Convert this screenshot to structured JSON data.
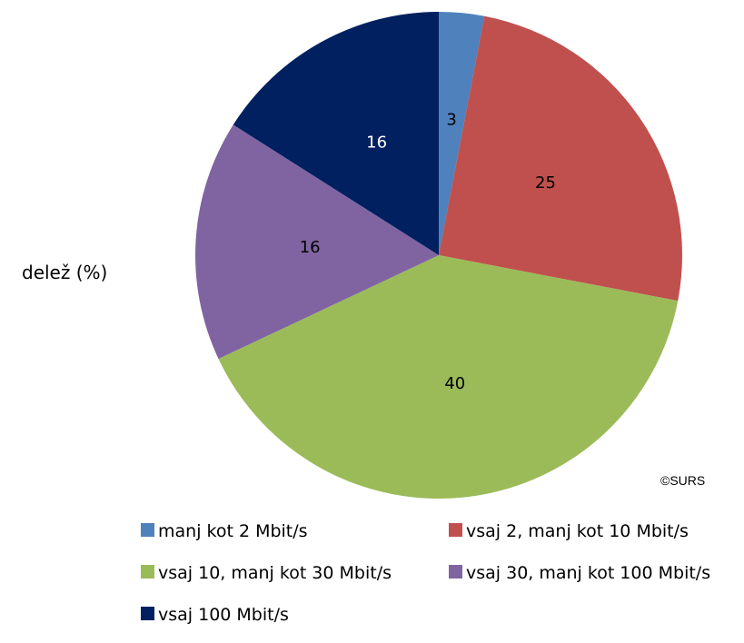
{
  "chart_data": {
    "type": "pie",
    "title": "",
    "ylabel": "delež (%)",
    "credit": "©SURS",
    "legend_position": "bottom",
    "series": [
      {
        "categories": [
          "manj kot 2 Mbit/s",
          "vsaj 2, manj kot 10 Mbit/s",
          "vsaj 10, manj kot 30 Mbit/s",
          "vsaj 30, manj kot 100 Mbit/s",
          "vsaj 100 Mbit/s"
        ],
        "values": [
          3,
          25,
          40,
          16,
          16
        ],
        "colors": [
          "#4F81BD",
          "#C0504D",
          "#9BBB59",
          "#8064A2",
          "#002060"
        ]
      }
    ]
  }
}
